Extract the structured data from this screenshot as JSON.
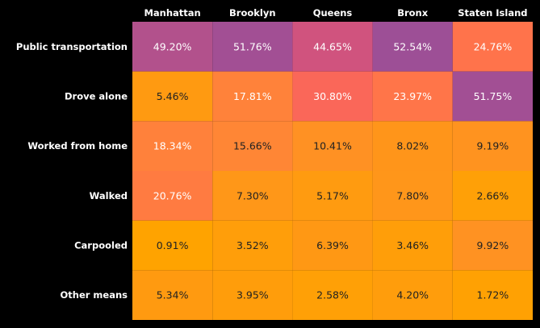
{
  "colors": {
    "background": "#000000",
    "label_text": "#ffffff",
    "cell_text_light": "#ffffff",
    "cell_text_dark": "#222222"
  },
  "chart_data": {
    "type": "heatmap",
    "columns": [
      "Manhattan",
      "Brooklyn",
      "Queens",
      "Bronx",
      "Staten Island"
    ],
    "rows": [
      "Public transportation",
      "Drove alone",
      "Worked from home",
      "Walked",
      "Carpooled",
      "Other means"
    ],
    "values": [
      [
        49.2,
        51.76,
        44.65,
        52.54,
        24.76
      ],
      [
        5.46,
        17.81,
        30.8,
        23.97,
        51.75
      ],
      [
        18.34,
        15.66,
        10.41,
        8.02,
        9.19
      ],
      [
        20.76,
        7.3,
        5.17,
        7.8,
        2.66
      ],
      [
        0.91,
        3.52,
        6.39,
        3.46,
        9.92
      ],
      [
        5.34,
        3.95,
        2.58,
        4.2,
        1.72
      ]
    ],
    "cell_labels": [
      [
        "49.20%",
        "51.76%",
        "44.65%",
        "52.54%",
        "24.76%"
      ],
      [
        "5.46%",
        "17.81%",
        "30.80%",
        "23.97%",
        "51.75%"
      ],
      [
        "18.34%",
        "15.66%",
        "10.41%",
        "8.02%",
        "9.19%"
      ],
      [
        "20.76%",
        "7.30%",
        "5.17%",
        "7.80%",
        "2.66%"
      ],
      [
        "0.91%",
        "3.52%",
        "6.39%",
        "3.46%",
        "9.92%"
      ],
      [
        "5.34%",
        "3.95%",
        "2.58%",
        "4.20%",
        "1.72%"
      ]
    ],
    "color_scale": [
      "#FFA300",
      "#FF8A30",
      "#FF6F50",
      "#F0566E",
      "#9D4F96"
    ],
    "column_labels_position": "top",
    "grid": false
  }
}
